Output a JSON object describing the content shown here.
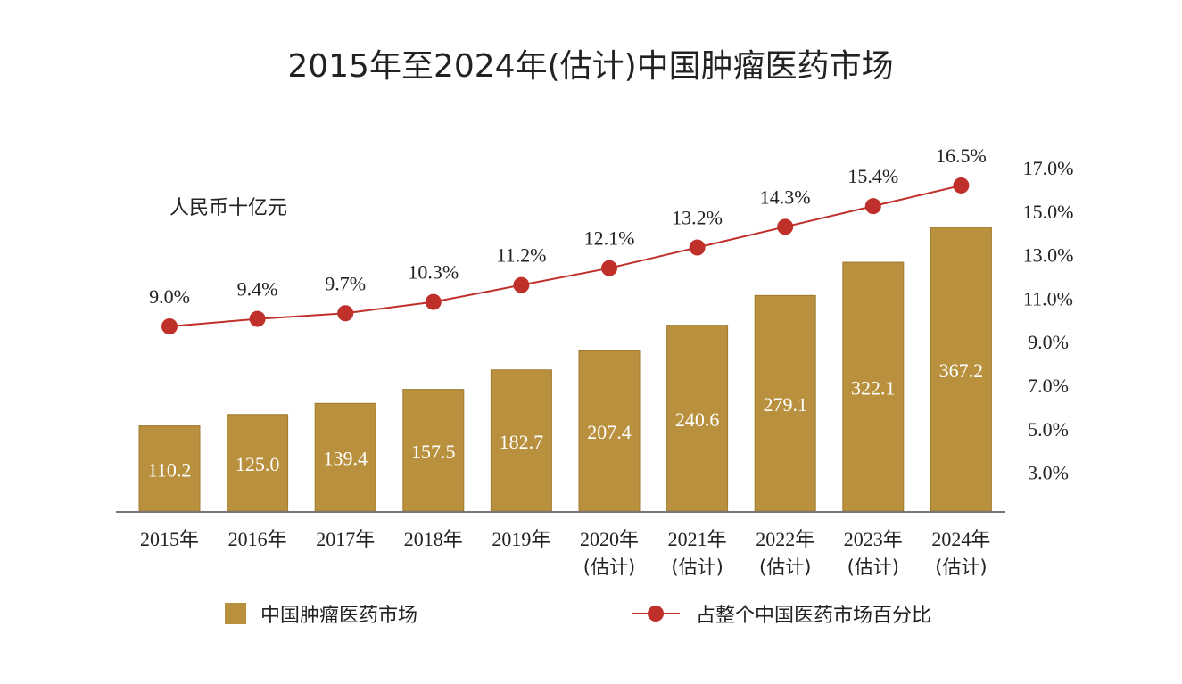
{
  "chart_data": {
    "type": "bar+line",
    "title": "2015年至2024年(估计)中国肿瘤医药市场",
    "unit_label": "人民币十亿元",
    "categories": [
      "2015年",
      "2016年",
      "2017年",
      "2018年",
      "2019年",
      "2020年",
      "2021年",
      "2022年",
      "2023年",
      "2024年"
    ],
    "category_notes": [
      "",
      "",
      "",
      "",
      "",
      "(估计)",
      "(估计)",
      "(估计)",
      "(估计)",
      "(估计)"
    ],
    "series": [
      {
        "name": "中国肿瘤医药市场",
        "type": "bar",
        "color": "#b8903e",
        "values": [
          110.2,
          125.0,
          139.4,
          157.5,
          182.7,
          207.4,
          240.6,
          279.1,
          322.1,
          367.2
        ],
        "labels": [
          "110.2",
          "125.0",
          "139.4",
          "157.5",
          "182.7",
          "207.4",
          "240.6",
          "279.1",
          "322.1",
          "367.2"
        ]
      },
      {
        "name": "占整个中国医药市场百分比",
        "type": "line",
        "axis": "right",
        "color": "#c0302a",
        "values": [
          9.0,
          9.4,
          9.7,
          10.3,
          11.2,
          12.1,
          13.2,
          14.3,
          15.4,
          16.5
        ],
        "labels": [
          "9.0%",
          "9.4%",
          "9.7%",
          "10.3%",
          "11.2%",
          "12.1%",
          "13.2%",
          "14.3%",
          "15.4%",
          "16.5%"
        ]
      }
    ],
    "right_axis_ticks": [
      "17.0%",
      "15.0%",
      "13.0%",
      "11.0%",
      "9.0%",
      "7.0%",
      "5.0%",
      "3.0%"
    ],
    "right_axis_values": [
      17,
      15,
      13,
      11,
      9,
      7,
      5,
      3
    ],
    "legend_position": "bottom",
    "grid": false
  }
}
